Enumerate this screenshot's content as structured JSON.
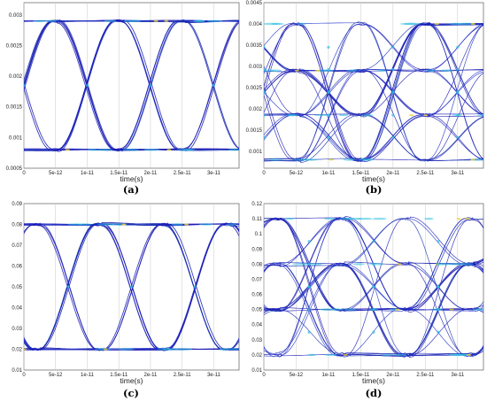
{
  "colors": {
    "trace": "#1a1ab4",
    "density_mid": "#2fbfe0",
    "density_high": "#f0d030",
    "grid": "#c8c8c8"
  },
  "chart_data": [
    {
      "panel": "(a)",
      "type": "line",
      "plot_kind": "eye-diagram",
      "xlabel": "time(s)",
      "ylabel": "",
      "xlim": [
        0,
        3.4e-11
      ],
      "ylim": [
        0.0005,
        0.0032
      ],
      "xticks": [
        "0",
        "5e-12",
        "1e-11",
        "1.5e-11",
        "2e-11",
        "2.5e-11",
        "3e-11"
      ],
      "yticks": [
        "0.0005",
        "0.001",
        "0.0015",
        "0.002",
        "0.0025",
        "0.003"
      ],
      "levels": [
        0.0008,
        0.0029
      ],
      "unit_interval": 1e-11,
      "crossing_times": [
        0,
        1e-11,
        2e-11,
        3e-11
      ]
    },
    {
      "panel": "(b)",
      "type": "line",
      "plot_kind": "eye-diagram",
      "xlabel": "time(s)",
      "ylabel": "",
      "xlim": [
        0,
        3.4e-11
      ],
      "ylim": [
        0.0006,
        0.0045
      ],
      "xticks": [
        "0",
        "5e-12",
        "1e-11",
        "1.5e-11",
        "2e-11",
        "2.5e-11",
        "3e-11"
      ],
      "yticks": [
        "0.001",
        "0.0015",
        "0.002",
        "0.0025",
        "0.003",
        "0.0035",
        "0.004",
        "0.0045"
      ],
      "levels": [
        0.0008,
        0.00185,
        0.0029,
        0.004
      ],
      "unit_interval": 1e-11,
      "crossing_times": [
        0,
        1e-11,
        2e-11,
        3e-11
      ]
    },
    {
      "panel": "(c)",
      "type": "line",
      "plot_kind": "eye-diagram",
      "xlabel": "time(s)",
      "ylabel": "",
      "xlim": [
        0,
        3.4e-11
      ],
      "ylim": [
        0.01,
        0.09
      ],
      "xticks": [
        "0",
        "5e-12",
        "1e-11",
        "1.5e-11",
        "2e-11",
        "2.5e-11",
        "3e-11"
      ],
      "yticks": [
        "0.01",
        "0.02",
        "0.03",
        "0.04",
        "0.05",
        "0.06",
        "0.07",
        "0.08",
        "0.09"
      ],
      "levels": [
        0.02,
        0.08
      ],
      "unit_interval": 1e-11,
      "crossing_times": [
        -3e-12,
        7e-12,
        1.7e-11,
        2.7e-11
      ]
    },
    {
      "panel": "(d)",
      "type": "line",
      "plot_kind": "eye-diagram",
      "xlabel": "time(s)",
      "ylabel": "",
      "xlim": [
        0,
        3.4e-11
      ],
      "ylim": [
        0.01,
        0.12
      ],
      "xticks": [
        "0",
        "5e-12",
        "1e-11",
        "1.5e-11",
        "2e-11",
        "2.5e-11",
        "3e-11"
      ],
      "yticks": [
        "0.01",
        "0.02",
        "0.03",
        "0.04",
        "0.05",
        "0.06",
        "0.07",
        "0.08",
        "0.09",
        "0.1",
        "0.11",
        "0.12"
      ],
      "levels": [
        0.02,
        0.05,
        0.08,
        0.11
      ],
      "unit_interval": 1e-11,
      "crossing_times": [
        -3e-12,
        7e-12,
        1.7e-11,
        2.7e-11
      ]
    }
  ]
}
